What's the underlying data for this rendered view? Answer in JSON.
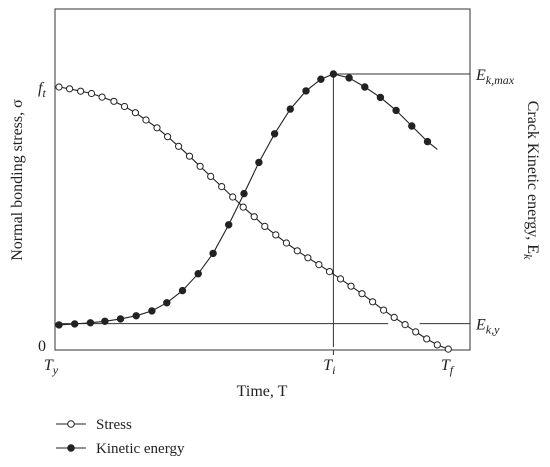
{
  "chart_data": {
    "type": "line",
    "ylabel_left": "Normal bonding stress, σ",
    "ylabel_right": "Crack Kinetic energy, E",
    "ylabel_right_sub": "k",
    "xlabel": "Time, T",
    "x_ticks": [
      {
        "main": "T",
        "sub": "y",
        "x": 0
      },
      {
        "main": "T",
        "sub": "i",
        "x": 0.7
      },
      {
        "main": "T",
        "sub": "f",
        "x": 1.0
      }
    ],
    "y_left_ticks": [
      {
        "main": "0",
        "sub": "",
        "y": 0
      },
      {
        "main": "f",
        "sub": "t",
        "y": 1.0
      }
    ],
    "y_right_ticks": [
      {
        "main": "E",
        "sub": "k,max",
        "y": 1.05
      },
      {
        "main": "E",
        "sub": "k,y",
        "y": 0.09
      }
    ],
    "xlim": [
      0,
      1
    ],
    "ylim": [
      0,
      1.3
    ],
    "series": [
      {
        "name": "Stress",
        "marker": "open-circle",
        "color": "#222222",
        "points": [
          [
            0.0,
            1.0
          ],
          [
            0.027,
            0.993
          ],
          [
            0.055,
            0.984
          ],
          [
            0.083,
            0.975
          ],
          [
            0.11,
            0.961
          ],
          [
            0.14,
            0.945
          ],
          [
            0.167,
            0.925
          ],
          [
            0.195,
            0.901
          ],
          [
            0.222,
            0.873
          ],
          [
            0.25,
            0.843
          ],
          [
            0.277,
            0.809
          ],
          [
            0.305,
            0.772
          ],
          [
            0.333,
            0.734
          ],
          [
            0.36,
            0.695
          ],
          [
            0.387,
            0.656
          ],
          [
            0.415,
            0.617
          ],
          [
            0.443,
            0.577
          ],
          [
            0.47,
            0.538
          ],
          [
            0.498,
            0.501
          ],
          [
            0.525,
            0.464
          ],
          [
            0.553,
            0.431
          ],
          [
            0.58,
            0.4
          ],
          [
            0.608,
            0.37
          ],
          [
            0.635,
            0.343
          ],
          [
            0.663,
            0.317
          ],
          [
            0.69,
            0.29
          ],
          [
            0.718,
            0.262
          ],
          [
            0.745,
            0.234
          ],
          [
            0.773,
            0.205
          ],
          [
            0.8,
            0.174
          ],
          [
            0.828,
            0.142
          ],
          [
            0.855,
            0.114
          ],
          [
            0.883,
            0.086
          ],
          [
            0.91,
            0.058
          ],
          [
            0.938,
            0.031
          ],
          [
            0.965,
            0.008
          ],
          [
            0.993,
            -0.008
          ]
        ]
      },
      {
        "name": "Kinetic energy",
        "marker": "filled-circle",
        "color": "#222222",
        "points": [
          [
            0.0,
            0.085
          ],
          [
            0.04,
            0.089
          ],
          [
            0.08,
            0.093
          ],
          [
            0.117,
            0.099
          ],
          [
            0.157,
            0.108
          ],
          [
            0.197,
            0.12
          ],
          [
            0.237,
            0.139
          ],
          [
            0.275,
            0.17
          ],
          [
            0.315,
            0.217
          ],
          [
            0.355,
            0.282
          ],
          [
            0.393,
            0.36
          ],
          [
            0.433,
            0.47
          ],
          [
            0.472,
            0.59
          ],
          [
            0.51,
            0.71
          ],
          [
            0.55,
            0.82
          ],
          [
            0.59,
            0.915
          ],
          [
            0.63,
            0.985
          ],
          [
            0.668,
            1.03
          ],
          [
            0.7,
            1.05
          ],
          [
            0.74,
            1.035
          ],
          [
            0.78,
            1.0
          ],
          [
            0.82,
            0.96
          ],
          [
            0.86,
            0.91
          ],
          [
            0.9,
            0.85
          ],
          [
            0.94,
            0.79
          ]
        ],
        "line_extends_to": [
          0.965,
          0.76
        ]
      }
    ],
    "guides": [
      {
        "type": "vertical",
        "x": 0.7,
        "from_y": 0,
        "to_y": 1.05
      },
      {
        "type": "horizontal",
        "y": 1.05,
        "from_x": 0.7,
        "to_x": 1.0
      },
      {
        "type": "horizontal",
        "y": 0.09,
        "from_x": 0.0,
        "to_x": 1.0,
        "gap": [
          0.84,
          0.92
        ]
      }
    ],
    "legend": {
      "placement": "bottom-left",
      "entries": [
        {
          "label": "Stress",
          "marker": "open-circle"
        },
        {
          "label": "Kinetic energy",
          "marker": "filled-circle"
        }
      ]
    },
    "grid": false
  }
}
